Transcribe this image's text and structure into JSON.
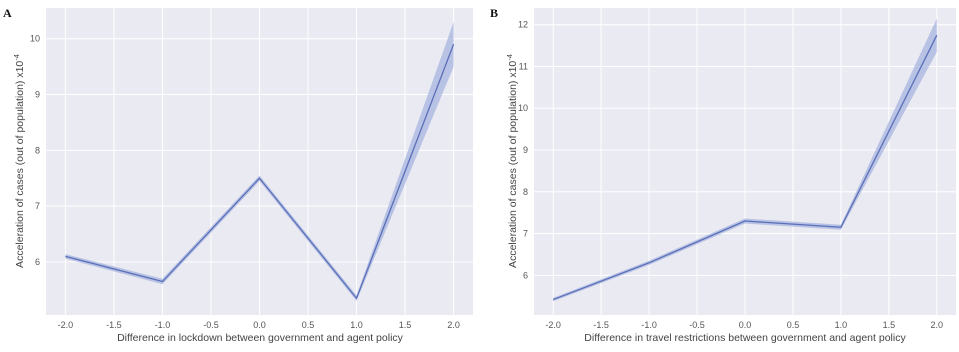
{
  "chart_data": [
    {
      "panel": "A",
      "type": "line",
      "xlabel": "Difference in lockdown between government and agent policy",
      "ylabel": "Acceleration of cases (out of population) x10",
      "ylabel_exponent": "-4",
      "x_ticks": [
        "-2.0",
        "-1.5",
        "-1.0",
        "-0.5",
        "0.0",
        "0.5",
        "1.0",
        "1.5",
        "2.0"
      ],
      "y_ticks": [
        "6",
        "7",
        "8",
        "9",
        "10"
      ],
      "xlim": [
        -2.2,
        2.2
      ],
      "ylim": [
        5.05,
        10.55
      ],
      "grid": true,
      "line_color": "#5a6fb8",
      "band_color": "#a7b4df",
      "background": "#eaeaf2",
      "series": [
        {
          "x": [
            -2.0,
            -1.0,
            0.0,
            1.0,
            2.0
          ],
          "y": [
            6.1,
            5.65,
            7.5,
            5.35,
            9.9
          ],
          "ci_low": [
            6.06,
            5.6,
            7.45,
            5.3,
            9.5
          ],
          "ci_high": [
            6.14,
            5.7,
            7.55,
            5.4,
            10.3
          ]
        }
      ]
    },
    {
      "panel": "B",
      "type": "line",
      "xlabel": "Difference in travel restrictions between government and agent policy",
      "ylabel": "Acceleration of cases (out of population) x10",
      "ylabel_exponent": "-4",
      "x_ticks": [
        "-2.0",
        "-1.5",
        "-1.0",
        "-0.5",
        "0.0",
        "0.5",
        "1.0",
        "1.5",
        "2.0"
      ],
      "y_ticks": [
        "6",
        "7",
        "8",
        "9",
        "10",
        "11",
        "12"
      ],
      "xlim": [
        -2.2,
        2.2
      ],
      "ylim": [
        5.05,
        12.4
      ],
      "grid": true,
      "line_color": "#5a6fb8",
      "band_color": "#a7b4df",
      "background": "#eaeaf2",
      "series": [
        {
          "x": [
            -2.0,
            -1.0,
            0.0,
            1.0,
            2.0
          ],
          "y": [
            5.42,
            6.3,
            7.3,
            7.15,
            11.75
          ],
          "ci_low": [
            5.38,
            6.25,
            7.24,
            7.09,
            11.35
          ],
          "ci_high": [
            5.46,
            6.35,
            7.36,
            7.21,
            12.15
          ]
        }
      ]
    }
  ]
}
